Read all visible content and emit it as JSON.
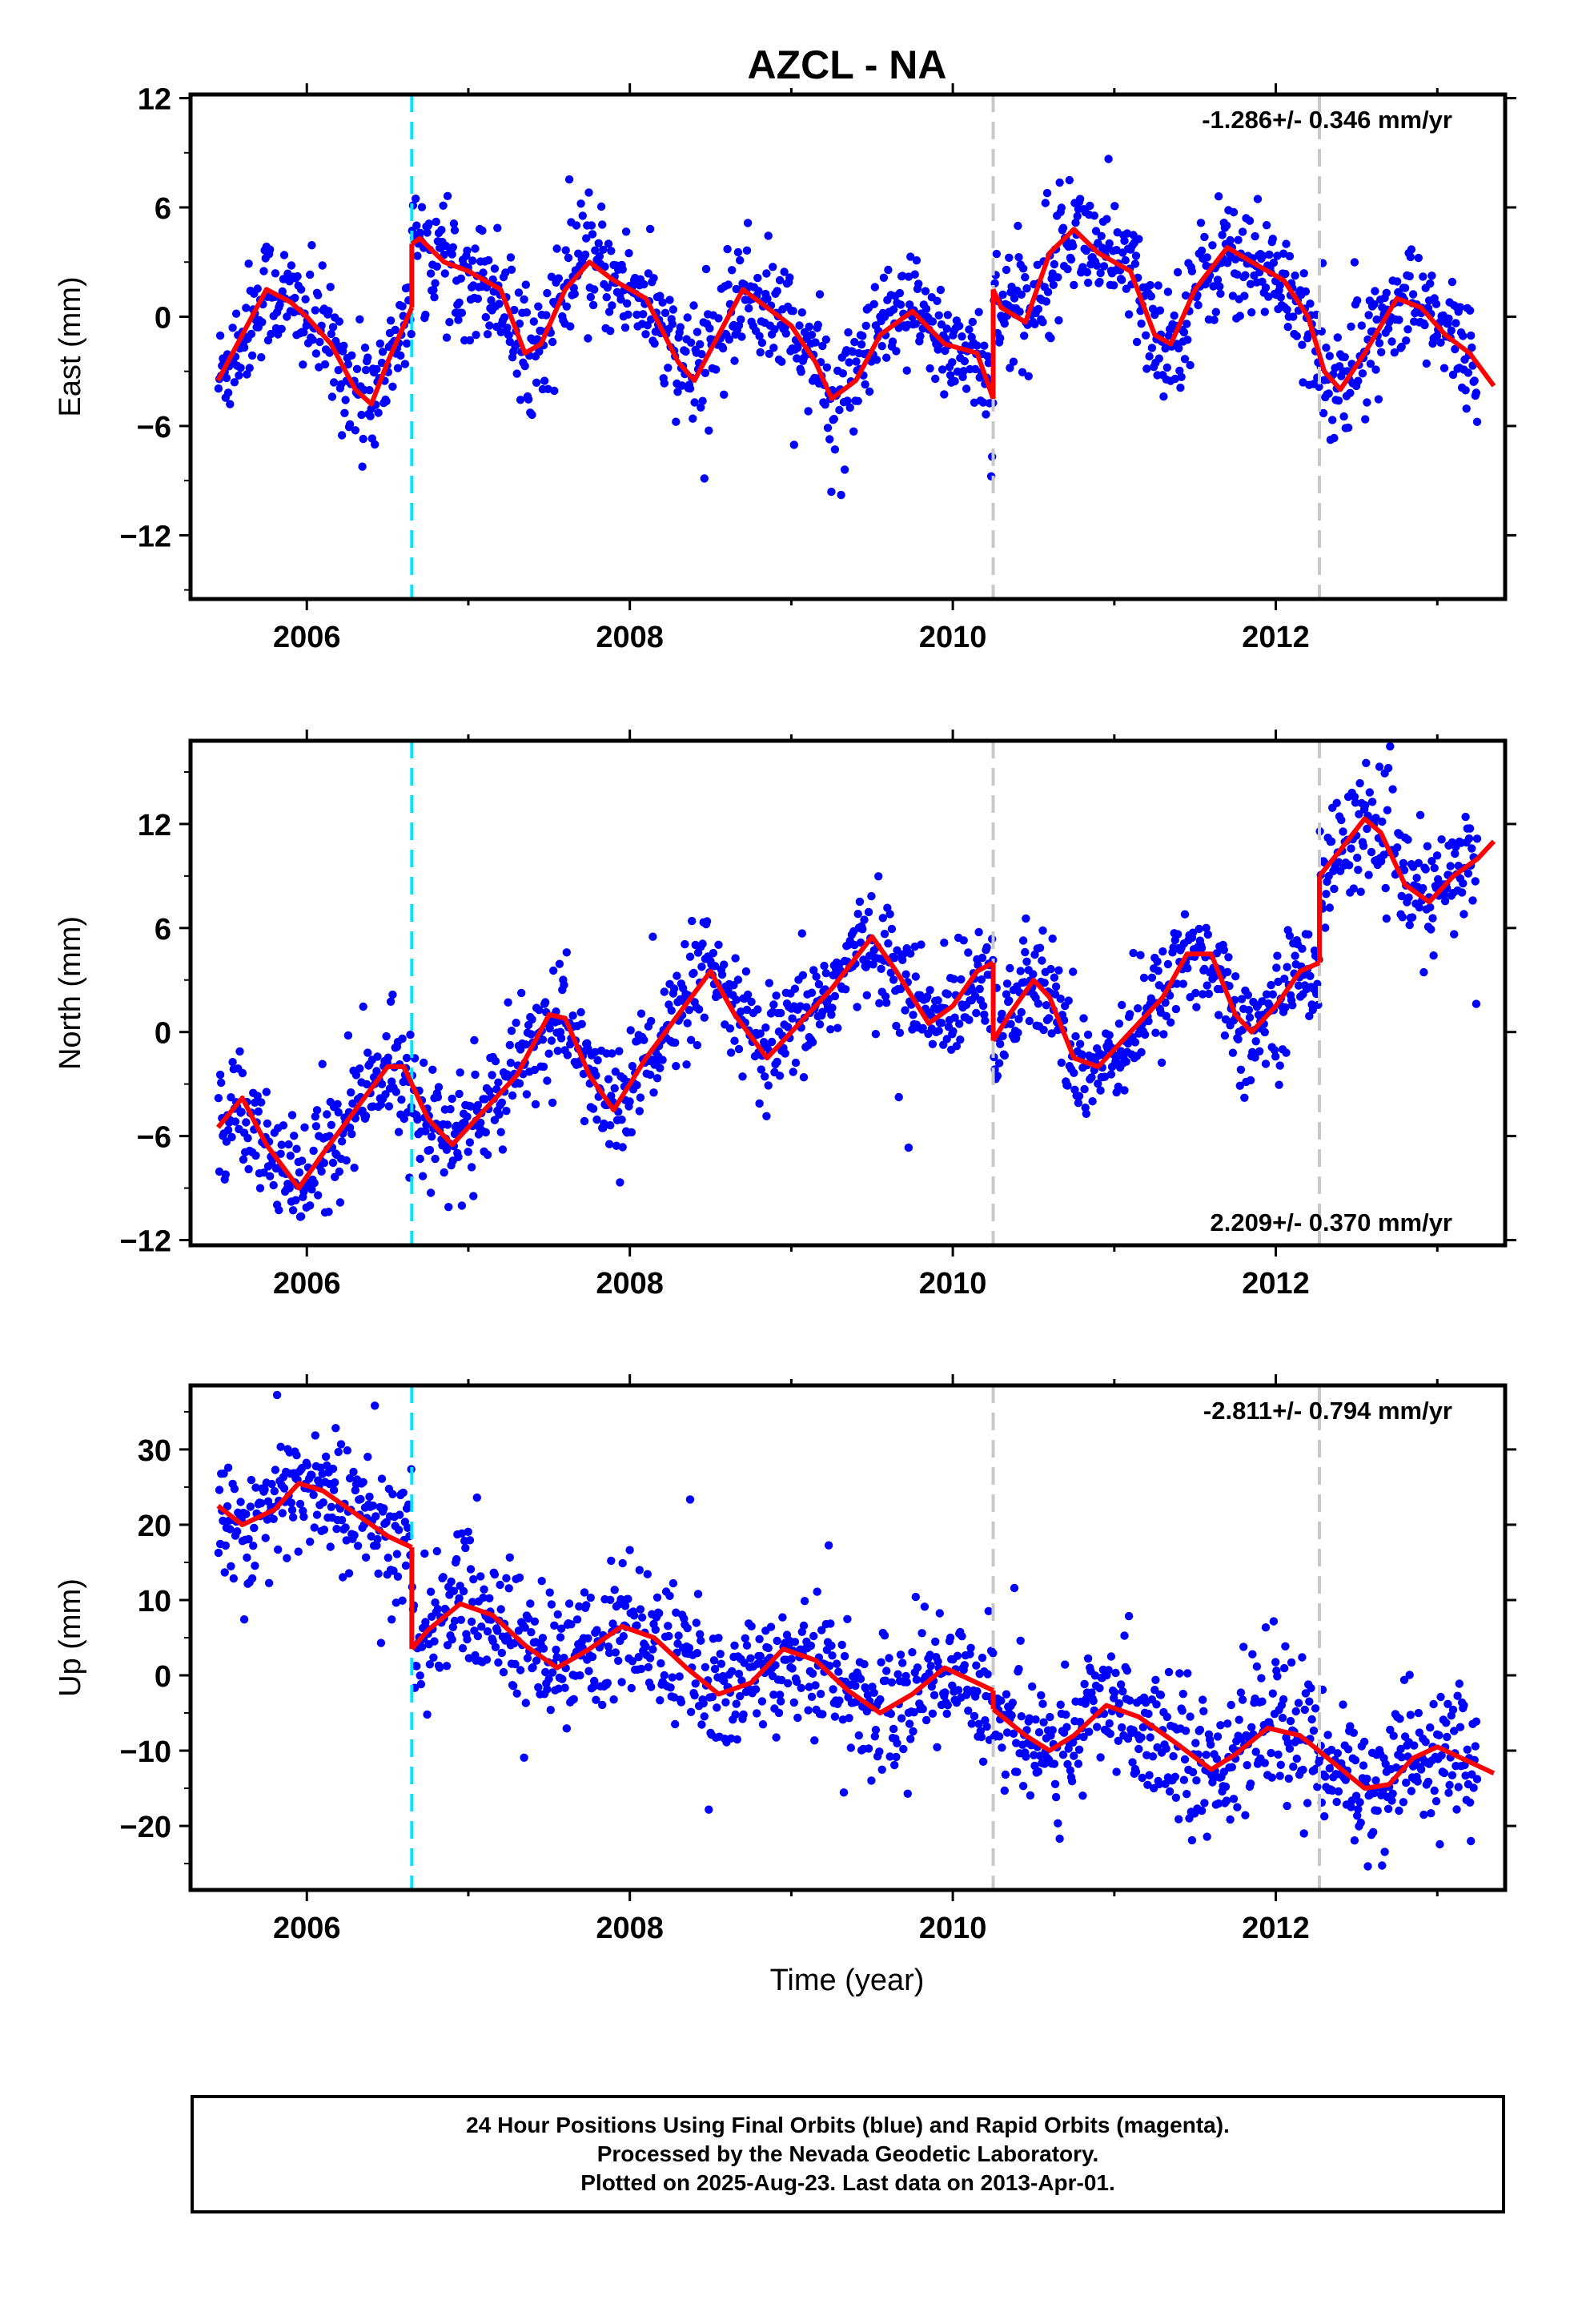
{
  "chart_data": {
    "type": "scatter",
    "title": "AZCL - NA",
    "xlabel": "Time (year)",
    "x_ticks": [
      2006,
      2008,
      2010,
      2012
    ],
    "xlim": [
      2005.28,
      2013.42
    ],
    "offset_lines": [
      {
        "x": 2006.65,
        "color": "#00e5ff"
      },
      {
        "x": 2010.25,
        "color": "#c8c8c8"
      },
      {
        "x": 2012.27,
        "color": "#c8c8c8"
      }
    ],
    "panels": [
      {
        "ylabel": "East (mm)",
        "ylim": [
          -15.5,
          12.2
        ],
        "y_ticks": [
          12,
          6,
          0,
          -6,
          -12
        ],
        "rate_label": "-1.286+/- 0.346 mm/yr",
        "rate_position": "top-right",
        "model": {
          "segments": [
            {
              "x": [
                2005.45,
                2005.6,
                2005.75,
                2005.9,
                2006.0,
                2006.15,
                2006.3,
                2006.4,
                2006.5,
                2006.6,
                2006.65
              ],
              "y": [
                -3.5,
                -1.0,
                1.5,
                0.8,
                0.0,
                -1.5,
                -4.0,
                -4.8,
                -2.5,
                -0.5,
                0.5
              ]
            },
            {
              "x": [
                2006.65,
                2006.7,
                2006.85,
                2007.0,
                2007.2,
                2007.35,
                2007.45,
                2007.6,
                2007.75,
                2007.9,
                2008.1,
                2008.3,
                2008.4,
                2008.55,
                2008.7,
                2008.85,
                2009.0,
                2009.15,
                2009.25,
                2009.4,
                2009.55,
                2009.75,
                2009.95,
                2010.15,
                2010.25
              ],
              "y": [
                4.0,
                4.3,
                3.0,
                2.5,
                1.5,
                -2.0,
                -1.5,
                1.5,
                3.0,
                2.0,
                1.0,
                -2.5,
                -3.5,
                -1.0,
                1.5,
                0.5,
                -0.5,
                -2.5,
                -4.5,
                -3.5,
                -1.0,
                0.3,
                -1.5,
                -2.0,
                -4.5
              ]
            },
            {
              "x": [
                2010.25,
                2010.3,
                2010.45,
                2010.6,
                2010.75,
                2010.9,
                2011.1,
                2011.25,
                2011.35,
                2011.5,
                2011.7,
                2011.85,
                2012.05,
                2012.2,
                2012.3,
                2012.4,
                2012.55,
                2012.75,
                2012.9,
                2013.05,
                2013.2,
                2013.35
              ],
              "y": [
                1.5,
                0.5,
                -0.3,
                3.5,
                4.8,
                3.5,
                2.5,
                -1.0,
                -1.5,
                1.5,
                3.8,
                3.0,
                2.0,
                0.0,
                -3.0,
                -4.0,
                -2.0,
                1.0,
                0.5,
                -1.0,
                -2.0,
                -3.8
              ]
            }
          ]
        }
      },
      {
        "ylabel": "North (mm)",
        "ylim": [
          -12.3,
          16.8
        ],
        "y_ticks": [
          12,
          6,
          0,
          -6,
          -12
        ],
        "rate_label": "2.209+/- 0.370 mm/yr",
        "rate_position": "bottom-right",
        "model": {
          "segments": [
            {
              "x": [
                2005.45,
                2005.6,
                2005.75,
                2005.95,
                2006.1,
                2006.3,
                2006.5,
                2006.6,
                2006.65
              ],
              "y": [
                -5.5,
                -3.8,
                -6.5,
                -9.0,
                -7.0,
                -4.5,
                -2.0,
                -2.0,
                -3.0
              ]
            },
            {
              "x": [
                2006.65,
                2006.75,
                2006.9,
                2007.1,
                2007.3,
                2007.5,
                2007.6,
                2007.75,
                2007.9,
                2008.1,
                2008.3,
                2008.5,
                2008.65,
                2008.85,
                2009.05,
                2009.25,
                2009.5,
                2009.65,
                2009.85,
                2010.0,
                2010.15,
                2010.25
              ],
              "y": [
                -3.0,
                -5.0,
                -6.5,
                -4.5,
                -2.5,
                1.0,
                0.8,
                -2.5,
                -4.5,
                -1.5,
                1.0,
                3.5,
                1.0,
                -1.5,
                0.5,
                2.5,
                5.5,
                3.5,
                0.5,
                1.5,
                3.5,
                4.0
              ]
            },
            {
              "x": [
                2010.25,
                2010.35,
                2010.5,
                2010.6,
                2010.75,
                2010.9,
                2011.1,
                2011.3,
                2011.45,
                2011.6,
                2011.75,
                2011.85,
                2012.0,
                2012.15,
                2012.27
              ],
              "y": [
                -0.5,
                1.0,
                3.0,
                2.0,
                -1.5,
                -2.0,
                0.0,
                2.0,
                4.5,
                4.5,
                1.0,
                0.0,
                1.5,
                3.5,
                4.0
              ]
            },
            {
              "x": [
                2012.27,
                2012.4,
                2012.55,
                2012.65,
                2012.8,
                2012.95,
                2013.1,
                2013.25,
                2013.35
              ],
              "y": [
                9.0,
                10.5,
                12.3,
                11.5,
                8.5,
                7.5,
                9.0,
                10.0,
                11.0
              ]
            }
          ]
        }
      },
      {
        "ylabel": "Up (mm)",
        "ylim": [
          -28.5,
          38.5
        ],
        "y_ticks": [
          30,
          20,
          10,
          0,
          -10,
          -20
        ],
        "rate_label": "-2.811+/- 0.794 mm/yr",
        "rate_position": "top-right",
        "model": {
          "segments": [
            {
              "x": [
                2005.45,
                2005.6,
                2005.8,
                2005.95,
                2006.1,
                2006.3,
                2006.5,
                2006.65
              ],
              "y": [
                22.5,
                20.0,
                22.0,
                25.5,
                24.5,
                21.5,
                18.5,
                17.0
              ]
            },
            {
              "x": [
                2006.65,
                2006.75,
                2006.95,
                2007.15,
                2007.35,
                2007.55,
                2007.75,
                2007.95,
                2008.15,
                2008.35,
                2008.55,
                2008.75,
                2008.95,
                2009.15,
                2009.35,
                2009.55,
                2009.75,
                2009.95,
                2010.1,
                2010.25
              ],
              "y": [
                3.5,
                6.0,
                9.5,
                8.0,
                4.0,
                1.0,
                3.5,
                6.5,
                5.0,
                1.0,
                -2.5,
                -1.0,
                3.5,
                2.0,
                -2.0,
                -5.0,
                -2.5,
                1.0,
                -0.5,
                -2.0
              ]
            },
            {
              "x": [
                2010.25,
                2010.45,
                2010.6,
                2010.75,
                2010.95,
                2011.15,
                2011.35,
                2011.6,
                2011.75,
                2011.95,
                2012.15,
                2012.35,
                2012.55,
                2012.7,
                2012.85,
                2013.0,
                2013.15,
                2013.35
              ],
              "y": [
                -4.5,
                -8.0,
                -10.0,
                -8.0,
                -4.0,
                -5.5,
                -8.5,
                -12.5,
                -10.5,
                -7.0,
                -8.0,
                -11.5,
                -15.0,
                -14.5,
                -11.0,
                -9.5,
                -11.0,
                -13.0
              ]
            }
          ]
        }
      }
    ],
    "colors": {
      "final_orbits": "#0000ff",
      "model": "#ff0000",
      "axis": "#000000"
    }
  },
  "footer": {
    "line1": "24 Hour Positions Using Final Orbits (blue) and Rapid Orbits (magenta).",
    "line2": "Processed by the Nevada Geodetic Laboratory.",
    "line3": "Plotted on 2025-Aug-23. Last data on 2013-Apr-01."
  }
}
